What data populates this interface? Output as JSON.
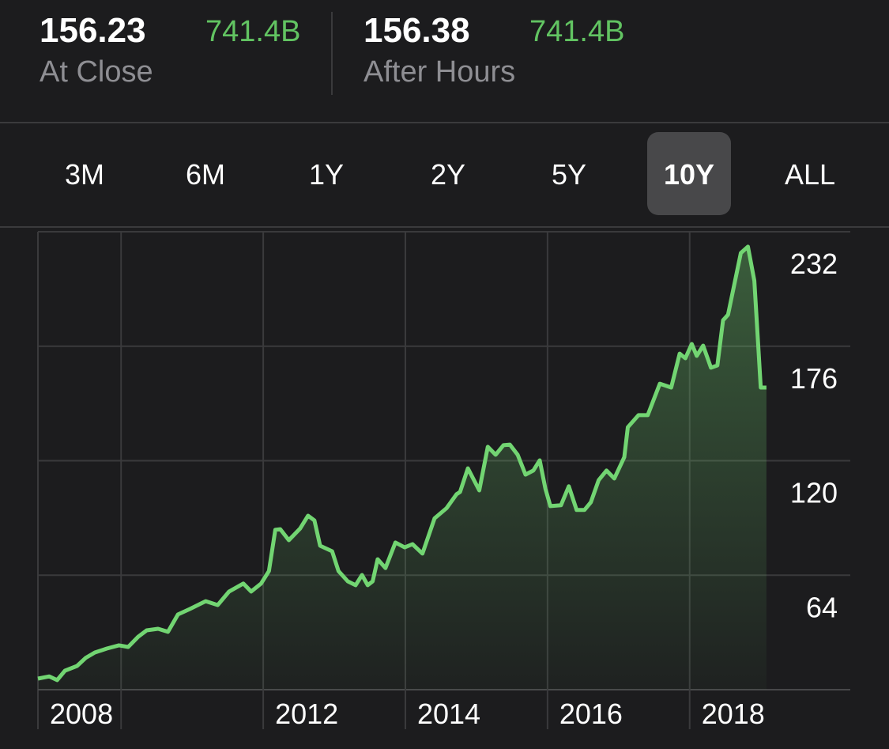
{
  "quotes": [
    {
      "price": "156.23",
      "cap": "741.4B",
      "label": "At Close"
    },
    {
      "price": "156.38",
      "cap": "741.4B",
      "label": "After Hours"
    }
  ],
  "ranges": [
    "3M",
    "6M",
    "1Y",
    "2Y",
    "5Y",
    "10Y",
    "ALL"
  ],
  "selected_range": "10Y",
  "chart_data": {
    "type": "area",
    "color": "#72d572",
    "x": [
      2008.83,
      2008.99,
      2009.1,
      2009.21,
      2009.38,
      2009.5,
      2009.63,
      2009.8,
      2009.97,
      2010.1,
      2010.24,
      2010.36,
      2010.52,
      2010.66,
      2010.8,
      2010.97,
      2011.19,
      2011.36,
      2011.52,
      2011.72,
      2011.83,
      2011.97,
      2012.08,
      2012.17,
      2012.24,
      2012.36,
      2012.52,
      2012.63,
      2012.72,
      2012.8,
      2012.97,
      2013.06,
      2013.19,
      2013.3,
      2013.39,
      2013.47,
      2013.54,
      2013.61,
      2013.72,
      2013.86,
      2013.99,
      2014.1,
      2014.24,
      2014.41,
      2014.58,
      2014.72,
      2014.77,
      2014.88,
      2015.04,
      2015.16,
      2015.27,
      2015.38,
      2015.47,
      2015.58,
      2015.69,
      2015.8,
      2015.89,
      2015.97,
      2016.04,
      2016.19,
      2016.3,
      2016.41,
      2016.52,
      2016.61,
      2016.72,
      2016.83,
      2016.94,
      2017.08,
      2017.13,
      2017.28,
      2017.41,
      2017.58,
      2017.74,
      2017.86,
      2017.94,
      2018.03,
      2018.1,
      2018.19,
      2018.3,
      2018.39,
      2018.47,
      2018.54,
      2018.72,
      2018.82,
      2018.91,
      2019.0,
      2019.08
    ],
    "values": [
      13.4,
      14.5,
      12.7,
      17.3,
      19.6,
      23.5,
      26.2,
      28.1,
      29.7,
      28.9,
      33.9,
      37,
      37.8,
      36.3,
      44.8,
      47.5,
      51.3,
      49.4,
      56,
      59.9,
      56,
      59.9,
      66,
      86.2,
      86.5,
      81.1,
      86.9,
      93.1,
      90.8,
      78.4,
      75.7,
      66,
      61,
      59.1,
      64.1,
      59.1,
      61,
      71.8,
      67.5,
      80,
      77.6,
      79.2,
      74.6,
      91.8,
      96.8,
      103.6,
      104.7,
      116.3,
      105.5,
      126.8,
      122.9,
      127.6,
      127.9,
      122.9,
      113.2,
      115.2,
      120.2,
      106.3,
      97.8,
      98.2,
      107.5,
      95.9,
      95.9,
      99.7,
      110.5,
      115.2,
      111.3,
      121.7,
      136.4,
      142.3,
      142.3,
      157.7,
      155.8,
      172.4,
      170.1,
      177.1,
      171.3,
      176.3,
      165.5,
      166.6,
      188.7,
      191.4,
      221.6,
      224.7,
      208,
      155.8,
      155.8
    ],
    "xlim": [
      2008.83,
      2020.26
    ],
    "xticks": [
      {
        "value": 2008.83,
        "label": "2008"
      },
      2012,
      2014,
      2016,
      2018
    ],
    "xgrid": [
      2010,
      2012,
      2014,
      2016,
      2018
    ],
    "ylim": [
      8,
      232
    ],
    "yticks": [
      64,
      120,
      176,
      232
    ],
    "grid": true
  }
}
